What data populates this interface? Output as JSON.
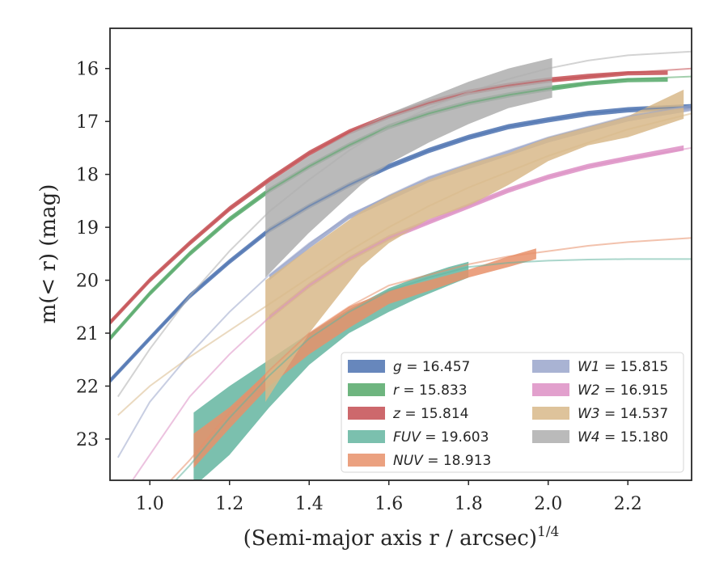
{
  "chart_data": {
    "type": "line",
    "xlabel_main": "(Semi-major axis r / arcsec)",
    "xlabel_sup": "1/4",
    "ylabel": "m(< r) (mag)",
    "xlim": [
      0.9,
      2.36
    ],
    "ylim": [
      23.78,
      15.24
    ],
    "y_inverted": true,
    "grid": false,
    "legend_position": "lower-right",
    "xticks": [
      1.0,
      1.2,
      1.4,
      1.6,
      1.8,
      2.0,
      2.2
    ],
    "xtick_labels": [
      "1.0",
      "1.2",
      "1.4",
      "1.6",
      "1.8",
      "2.0",
      "2.2"
    ],
    "yticks": [
      16,
      17,
      18,
      19,
      20,
      21,
      22,
      23
    ],
    "ytick_labels": [
      "16",
      "17",
      "18",
      "19",
      "20",
      "21",
      "22",
      "23"
    ],
    "series": [
      {
        "name": "g = 16.457",
        "band": "g",
        "value": "16.457",
        "color": "#4c72b0",
        "model_x": [
          0.9,
          1.0,
          1.1,
          1.2,
          1.3,
          1.4,
          1.5,
          1.6,
          1.7,
          1.8,
          1.9,
          2.0,
          2.1,
          2.2,
          2.36
        ],
        "model_y": [
          21.9,
          21.1,
          20.3,
          19.65,
          19.05,
          18.6,
          18.2,
          17.85,
          17.55,
          17.3,
          17.1,
          16.97,
          16.85,
          16.78,
          16.72
        ],
        "data_x": [
          0.9,
          1.0,
          1.1,
          1.2,
          1.3,
          1.4,
          1.5,
          1.6,
          1.7,
          1.8,
          1.9,
          2.0,
          2.1,
          2.2,
          2.36
        ],
        "data_upper": [
          21.85,
          21.05,
          20.25,
          19.6,
          19.0,
          18.55,
          18.15,
          17.8,
          17.5,
          17.25,
          17.05,
          16.92,
          16.8,
          16.73,
          16.67
        ],
        "data_lower": [
          21.95,
          21.15,
          20.35,
          19.7,
          19.1,
          18.65,
          18.25,
          17.9,
          17.6,
          17.35,
          17.15,
          17.02,
          16.9,
          16.83,
          16.77
        ]
      },
      {
        "name": "r = 15.833",
        "band": "r",
        "value": "15.833",
        "color": "#55a868",
        "model_x": [
          0.9,
          1.0,
          1.1,
          1.2,
          1.3,
          1.4,
          1.5,
          1.6,
          1.7,
          1.8,
          1.9,
          2.0,
          2.1,
          2.2,
          2.36
        ],
        "model_y": [
          21.1,
          20.25,
          19.5,
          18.85,
          18.3,
          17.85,
          17.45,
          17.1,
          16.85,
          16.65,
          16.5,
          16.38,
          16.28,
          16.2,
          16.15
        ],
        "data_x": [
          0.9,
          1.0,
          1.1,
          1.2,
          1.3,
          1.4,
          1.5,
          1.6,
          1.7,
          1.8,
          1.9,
          2.0,
          2.1,
          2.2,
          2.3
        ],
        "data_upper": [
          21.05,
          20.2,
          19.45,
          18.8,
          18.25,
          17.8,
          17.4,
          17.05,
          16.8,
          16.6,
          16.45,
          16.33,
          16.24,
          16.18,
          16.17
        ],
        "data_lower": [
          21.15,
          20.3,
          19.55,
          18.9,
          18.35,
          17.9,
          17.5,
          17.15,
          16.9,
          16.7,
          16.55,
          16.43,
          16.32,
          16.26,
          16.25
        ]
      },
      {
        "name": "z = 15.814",
        "band": "z",
        "value": "15.814",
        "color": "#c44e52",
        "model_x": [
          0.9,
          1.0,
          1.1,
          1.2,
          1.3,
          1.4,
          1.5,
          1.6,
          1.7,
          1.8,
          1.9,
          2.0,
          2.1,
          2.2,
          2.36
        ],
        "model_y": [
          20.8,
          20.0,
          19.3,
          18.65,
          18.1,
          17.6,
          17.2,
          16.9,
          16.65,
          16.45,
          16.32,
          16.22,
          16.15,
          16.08,
          16.0
        ],
        "data_x": [
          0.9,
          1.0,
          1.1,
          1.2,
          1.3,
          1.4,
          1.5,
          1.6,
          1.7,
          1.8,
          1.9,
          2.0,
          2.1,
          2.2,
          2.3
        ],
        "data_upper": [
          20.75,
          19.95,
          19.25,
          18.6,
          18.05,
          17.55,
          17.15,
          16.85,
          16.6,
          16.4,
          16.27,
          16.17,
          16.1,
          16.05,
          16.04
        ],
        "data_lower": [
          20.85,
          20.05,
          19.35,
          18.7,
          18.15,
          17.65,
          17.25,
          16.95,
          16.7,
          16.5,
          16.37,
          16.27,
          16.2,
          16.13,
          16.12
        ]
      },
      {
        "name": "FUV = 19.603",
        "band": "FUV",
        "value": "19.603",
        "color": "#64b5a0",
        "model_x": [
          1.05,
          1.1,
          1.2,
          1.3,
          1.4,
          1.5,
          1.6,
          1.7,
          1.8,
          1.9,
          2.0,
          2.1,
          2.2,
          2.36
        ],
        "model_y": [
          23.9,
          23.5,
          22.6,
          21.8,
          21.1,
          20.6,
          20.2,
          19.95,
          19.75,
          19.67,
          19.63,
          19.61,
          19.6,
          19.6
        ],
        "data_x": [
          1.11,
          1.2,
          1.3,
          1.4,
          1.5,
          1.55,
          1.6,
          1.67,
          1.75,
          1.8
        ],
        "data_upper": [
          22.5,
          22.0,
          21.5,
          21.0,
          20.55,
          20.35,
          20.15,
          19.95,
          19.75,
          19.65
        ],
        "data_lower": [
          23.9,
          23.3,
          22.4,
          21.6,
          21.0,
          20.8,
          20.6,
          20.35,
          20.1,
          19.95
        ]
      },
      {
        "name": "NUV = 18.913",
        "band": "NUV",
        "value": "18.913",
        "color": "#e8906a",
        "model_x": [
          1.05,
          1.1,
          1.2,
          1.3,
          1.4,
          1.5,
          1.6,
          1.7,
          1.8,
          1.9,
          2.0,
          2.1,
          2.2,
          2.36
        ],
        "model_y": [
          23.8,
          23.4,
          22.5,
          21.7,
          21.0,
          20.5,
          20.1,
          19.9,
          19.7,
          19.55,
          19.45,
          19.35,
          19.28,
          19.2
        ],
        "data_x": [
          1.11,
          1.2,
          1.3,
          1.4,
          1.5,
          1.6,
          1.7,
          1.8,
          1.9,
          1.97
        ],
        "data_upper": [
          22.9,
          22.4,
          21.7,
          21.0,
          20.5,
          20.2,
          20.0,
          19.8,
          19.55,
          19.4
        ],
        "data_lower": [
          23.55,
          22.8,
          22.0,
          21.4,
          20.9,
          20.45,
          20.2,
          19.95,
          19.75,
          19.6
        ]
      },
      {
        "name": "W1 = 15.815",
        "band": "W1",
        "value": "15.815",
        "color": "#9aa6cb",
        "model_x": [
          0.92,
          1.0,
          1.1,
          1.2,
          1.3,
          1.4,
          1.5,
          1.6,
          1.7,
          1.8,
          1.9,
          2.0,
          2.1,
          2.2,
          2.36
        ],
        "model_y": [
          23.35,
          22.3,
          21.4,
          20.6,
          19.9,
          19.3,
          18.8,
          18.4,
          18.05,
          17.8,
          17.55,
          17.3,
          17.1,
          16.9,
          16.7
        ],
        "data_x": [
          1.3,
          1.4,
          1.5,
          1.6,
          1.7,
          1.8,
          1.9,
          2.0,
          2.1,
          2.2,
          2.36
        ],
        "data_upper": [
          19.9,
          19.3,
          18.75,
          18.4,
          18.05,
          17.8,
          17.55,
          17.3,
          17.1,
          16.9,
          16.7
        ],
        "data_lower": [
          20.0,
          19.4,
          18.85,
          18.5,
          18.15,
          17.9,
          17.65,
          17.4,
          17.2,
          17.0,
          16.8
        ]
      },
      {
        "name": "W2 = 16.915",
        "band": "W2",
        "value": "16.915",
        "color": "#dd8fc4",
        "model_x": [
          0.95,
          1.0,
          1.1,
          1.2,
          1.3,
          1.4,
          1.5,
          1.6,
          1.7,
          1.8,
          1.9,
          2.0,
          2.1,
          2.2,
          2.36
        ],
        "model_y": [
          23.85,
          23.3,
          22.2,
          21.4,
          20.7,
          20.1,
          19.6,
          19.2,
          18.9,
          18.6,
          18.3,
          18.05,
          17.85,
          17.7,
          17.5
        ],
        "data_x": [
          1.3,
          1.4,
          1.5,
          1.6,
          1.7,
          1.8,
          1.9,
          2.0,
          2.1,
          2.2,
          2.34
        ],
        "data_upper": [
          20.65,
          20.05,
          19.55,
          19.15,
          18.85,
          18.55,
          18.25,
          18.0,
          17.8,
          17.65,
          17.45
        ],
        "data_lower": [
          20.75,
          20.15,
          19.65,
          19.25,
          18.95,
          18.65,
          18.35,
          18.1,
          17.9,
          17.75,
          17.55
        ]
      },
      {
        "name": "W3 = 14.537",
        "band": "W3",
        "value": "14.537",
        "color": "#d8b98a",
        "model_x": [
          0.92,
          1.0,
          1.1,
          1.2,
          1.3,
          1.4,
          1.5,
          1.6,
          1.7,
          1.8,
          1.9,
          2.0,
          2.1,
          2.2,
          2.36
        ],
        "model_y": [
          22.55,
          22.0,
          21.45,
          20.95,
          20.45,
          19.95,
          19.45,
          19.0,
          18.6,
          18.25,
          17.95,
          17.65,
          17.4,
          17.15,
          16.85
        ],
        "data_x": [
          1.29,
          1.4,
          1.53,
          1.6,
          1.7,
          1.8,
          1.9,
          2.0,
          2.1,
          2.2,
          2.34
        ],
        "data_upper": [
          20.0,
          19.4,
          18.7,
          18.4,
          18.1,
          17.8,
          17.6,
          17.3,
          17.1,
          16.9,
          16.4
        ],
        "data_lower": [
          22.3,
          21.0,
          19.75,
          19.3,
          18.85,
          18.6,
          18.2,
          17.75,
          17.45,
          17.3,
          16.95
        ]
      },
      {
        "name": "W4 = 15.180",
        "band": "W4",
        "value": "15.180",
        "color": "#aeaeae",
        "model_x": [
          0.92,
          1.0,
          1.1,
          1.2,
          1.3,
          1.4,
          1.5,
          1.6,
          1.7,
          1.8,
          1.9,
          2.0,
          2.1,
          2.2,
          2.36
        ],
        "model_y": [
          22.2,
          21.3,
          20.3,
          19.45,
          18.7,
          18.1,
          17.55,
          17.1,
          16.75,
          16.45,
          16.2,
          16.0,
          15.85,
          15.75,
          15.68
        ],
        "data_x": [
          1.29,
          1.4,
          1.53,
          1.6,
          1.7,
          1.8,
          1.9,
          2.01
        ],
        "data_upper": [
          18.2,
          17.65,
          17.1,
          16.85,
          16.55,
          16.25,
          16.0,
          15.8
        ],
        "data_lower": [
          19.95,
          19.1,
          18.2,
          17.8,
          17.4,
          17.05,
          16.75,
          16.55
        ]
      }
    ]
  }
}
